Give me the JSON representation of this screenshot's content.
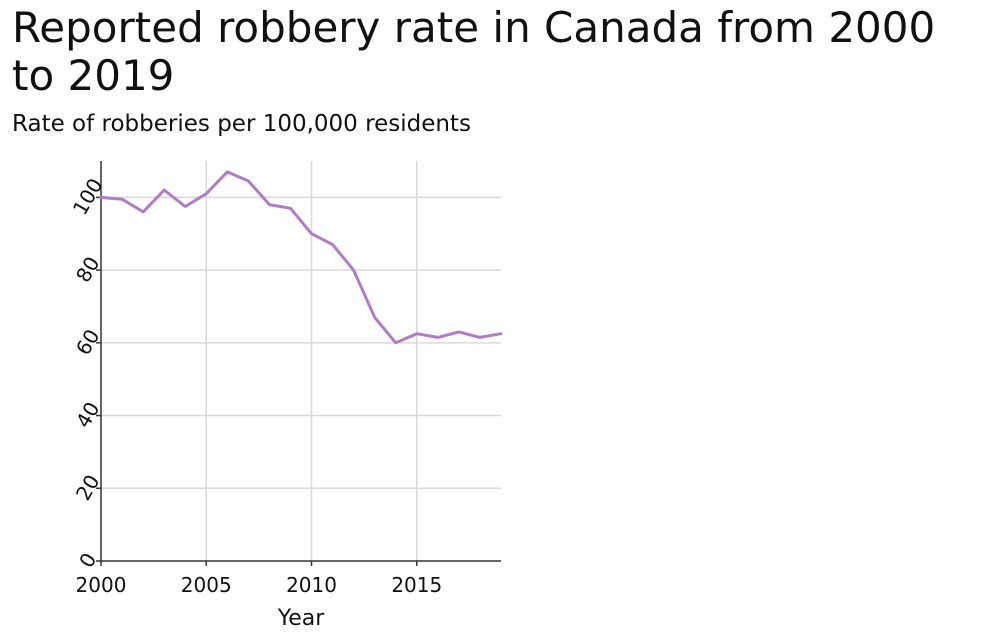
{
  "chart_data": {
    "type": "line",
    "title": "Reported robbery rate in Canada from 2000 to 2019",
    "subtitle": "Rate of robberies per 100,000 residents",
    "xlabel": "Year",
    "ylabel": "",
    "xlim": [
      2000,
      2019
    ],
    "ylim": [
      0,
      110
    ],
    "x_ticks": [
      2000,
      2005,
      2010,
      2015
    ],
    "y_ticks": [
      0,
      20,
      40,
      60,
      80,
      100
    ],
    "grid": true,
    "line_color": "#b07cc6",
    "series": [
      {
        "x": [
          2000,
          2001,
          2002,
          2003,
          2004,
          2005,
          2006,
          2007,
          2008,
          2009,
          2010,
          2011,
          2012,
          2013,
          2014,
          2015,
          2016,
          2017,
          2018,
          2019
        ],
        "values": [
          100,
          99.5,
          96,
          102,
          97.5,
          101,
          107,
          104.5,
          98,
          97,
          90,
          87,
          80,
          67,
          60,
          62.5,
          61.5,
          63,
          61.5,
          62.5
        ]
      }
    ]
  }
}
